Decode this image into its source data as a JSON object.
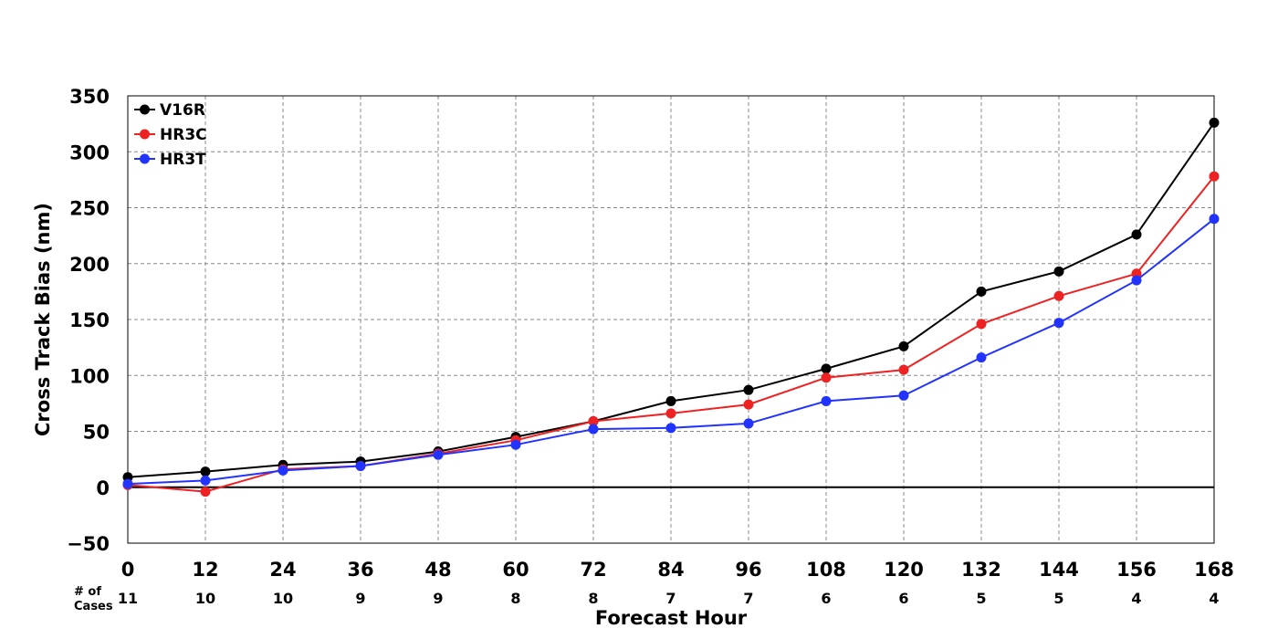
{
  "chart_data": {
    "type": "line",
    "xlabel": "Forecast Hour",
    "ylabel": "Cross Track Bias (nm)",
    "x": [
      0,
      12,
      24,
      36,
      48,
      60,
      72,
      84,
      96,
      108,
      120,
      132,
      144,
      156,
      168
    ],
    "xlim": [
      0,
      168
    ],
    "ylim": [
      -50,
      350
    ],
    "yticks": [
      -50,
      0,
      50,
      100,
      150,
      200,
      250,
      300,
      350
    ],
    "ytick_labels": [
      "−50",
      "0",
      "50",
      "100",
      "150",
      "200",
      "250",
      "300",
      "350"
    ],
    "grid": true,
    "zero_line": true,
    "legend_position": "top-left",
    "cases_title_line1": "# of",
    "cases_title_line2": "Cases",
    "cases": [
      11,
      10,
      10,
      9,
      9,
      8,
      8,
      7,
      7,
      6,
      6,
      5,
      5,
      4,
      4
    ],
    "series": [
      {
        "name": "V16R",
        "color": "#000000",
        "values": [
          9,
          14,
          20,
          23,
          32,
          45,
          59,
          77,
          87,
          106,
          126,
          175,
          193,
          226,
          326
        ]
      },
      {
        "name": "HR3C",
        "color": "#ee2222",
        "values": [
          2,
          -4,
          16,
          19,
          30,
          42,
          59,
          66,
          74,
          98,
          105,
          146,
          171,
          191,
          278
        ]
      },
      {
        "name": "HR3T",
        "color": "#2233ff",
        "values": [
          3,
          6,
          15,
          19,
          29,
          38,
          52,
          53,
          57,
          77,
          82,
          116,
          147,
          185,
          240
        ]
      }
    ]
  }
}
